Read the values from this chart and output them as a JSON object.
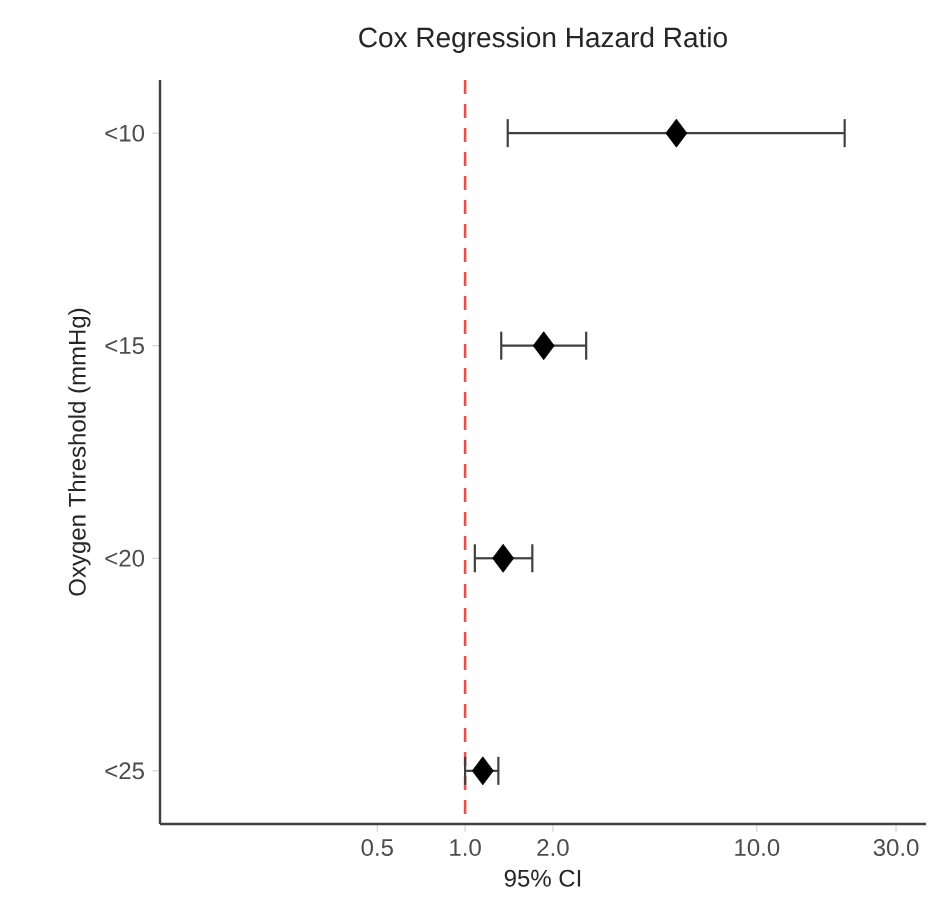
{
  "chart_data": {
    "type": "scatter",
    "orientation": "horizontal",
    "title": "Cox Regression Hazard Ratio",
    "xlabel": "95% CI",
    "ylabel": "Oxygen Threshold (mmHg)",
    "categories": [
      "<10",
      "<15",
      "<20",
      "<25"
    ],
    "values": [
      5.3,
      1.86,
      1.35,
      1.15
    ],
    "errors": [
      [
        1.4,
        20
      ],
      [
        1.33,
        2.6
      ],
      [
        1.08,
        1.7
      ],
      [
        1.0,
        1.3
      ]
    ],
    "color": "#000000",
    "marker": "diamond",
    "log": "x",
    "xlim": [
      0.09,
      38
    ],
    "xticks": [
      {
        "value": 0.5,
        "label": "0.5"
      },
      {
        "value": 1,
        "label": "1.0"
      },
      {
        "value": 2,
        "label": "2.0"
      },
      {
        "value": 10,
        "label": "10.0"
      },
      {
        "value": 30,
        "label": "30.0"
      }
    ],
    "ref_lines": [
      {
        "axis": "x",
        "value": 1,
        "color": "#e8504a",
        "line_style": "dashed"
      }
    ],
    "grid": false
  }
}
